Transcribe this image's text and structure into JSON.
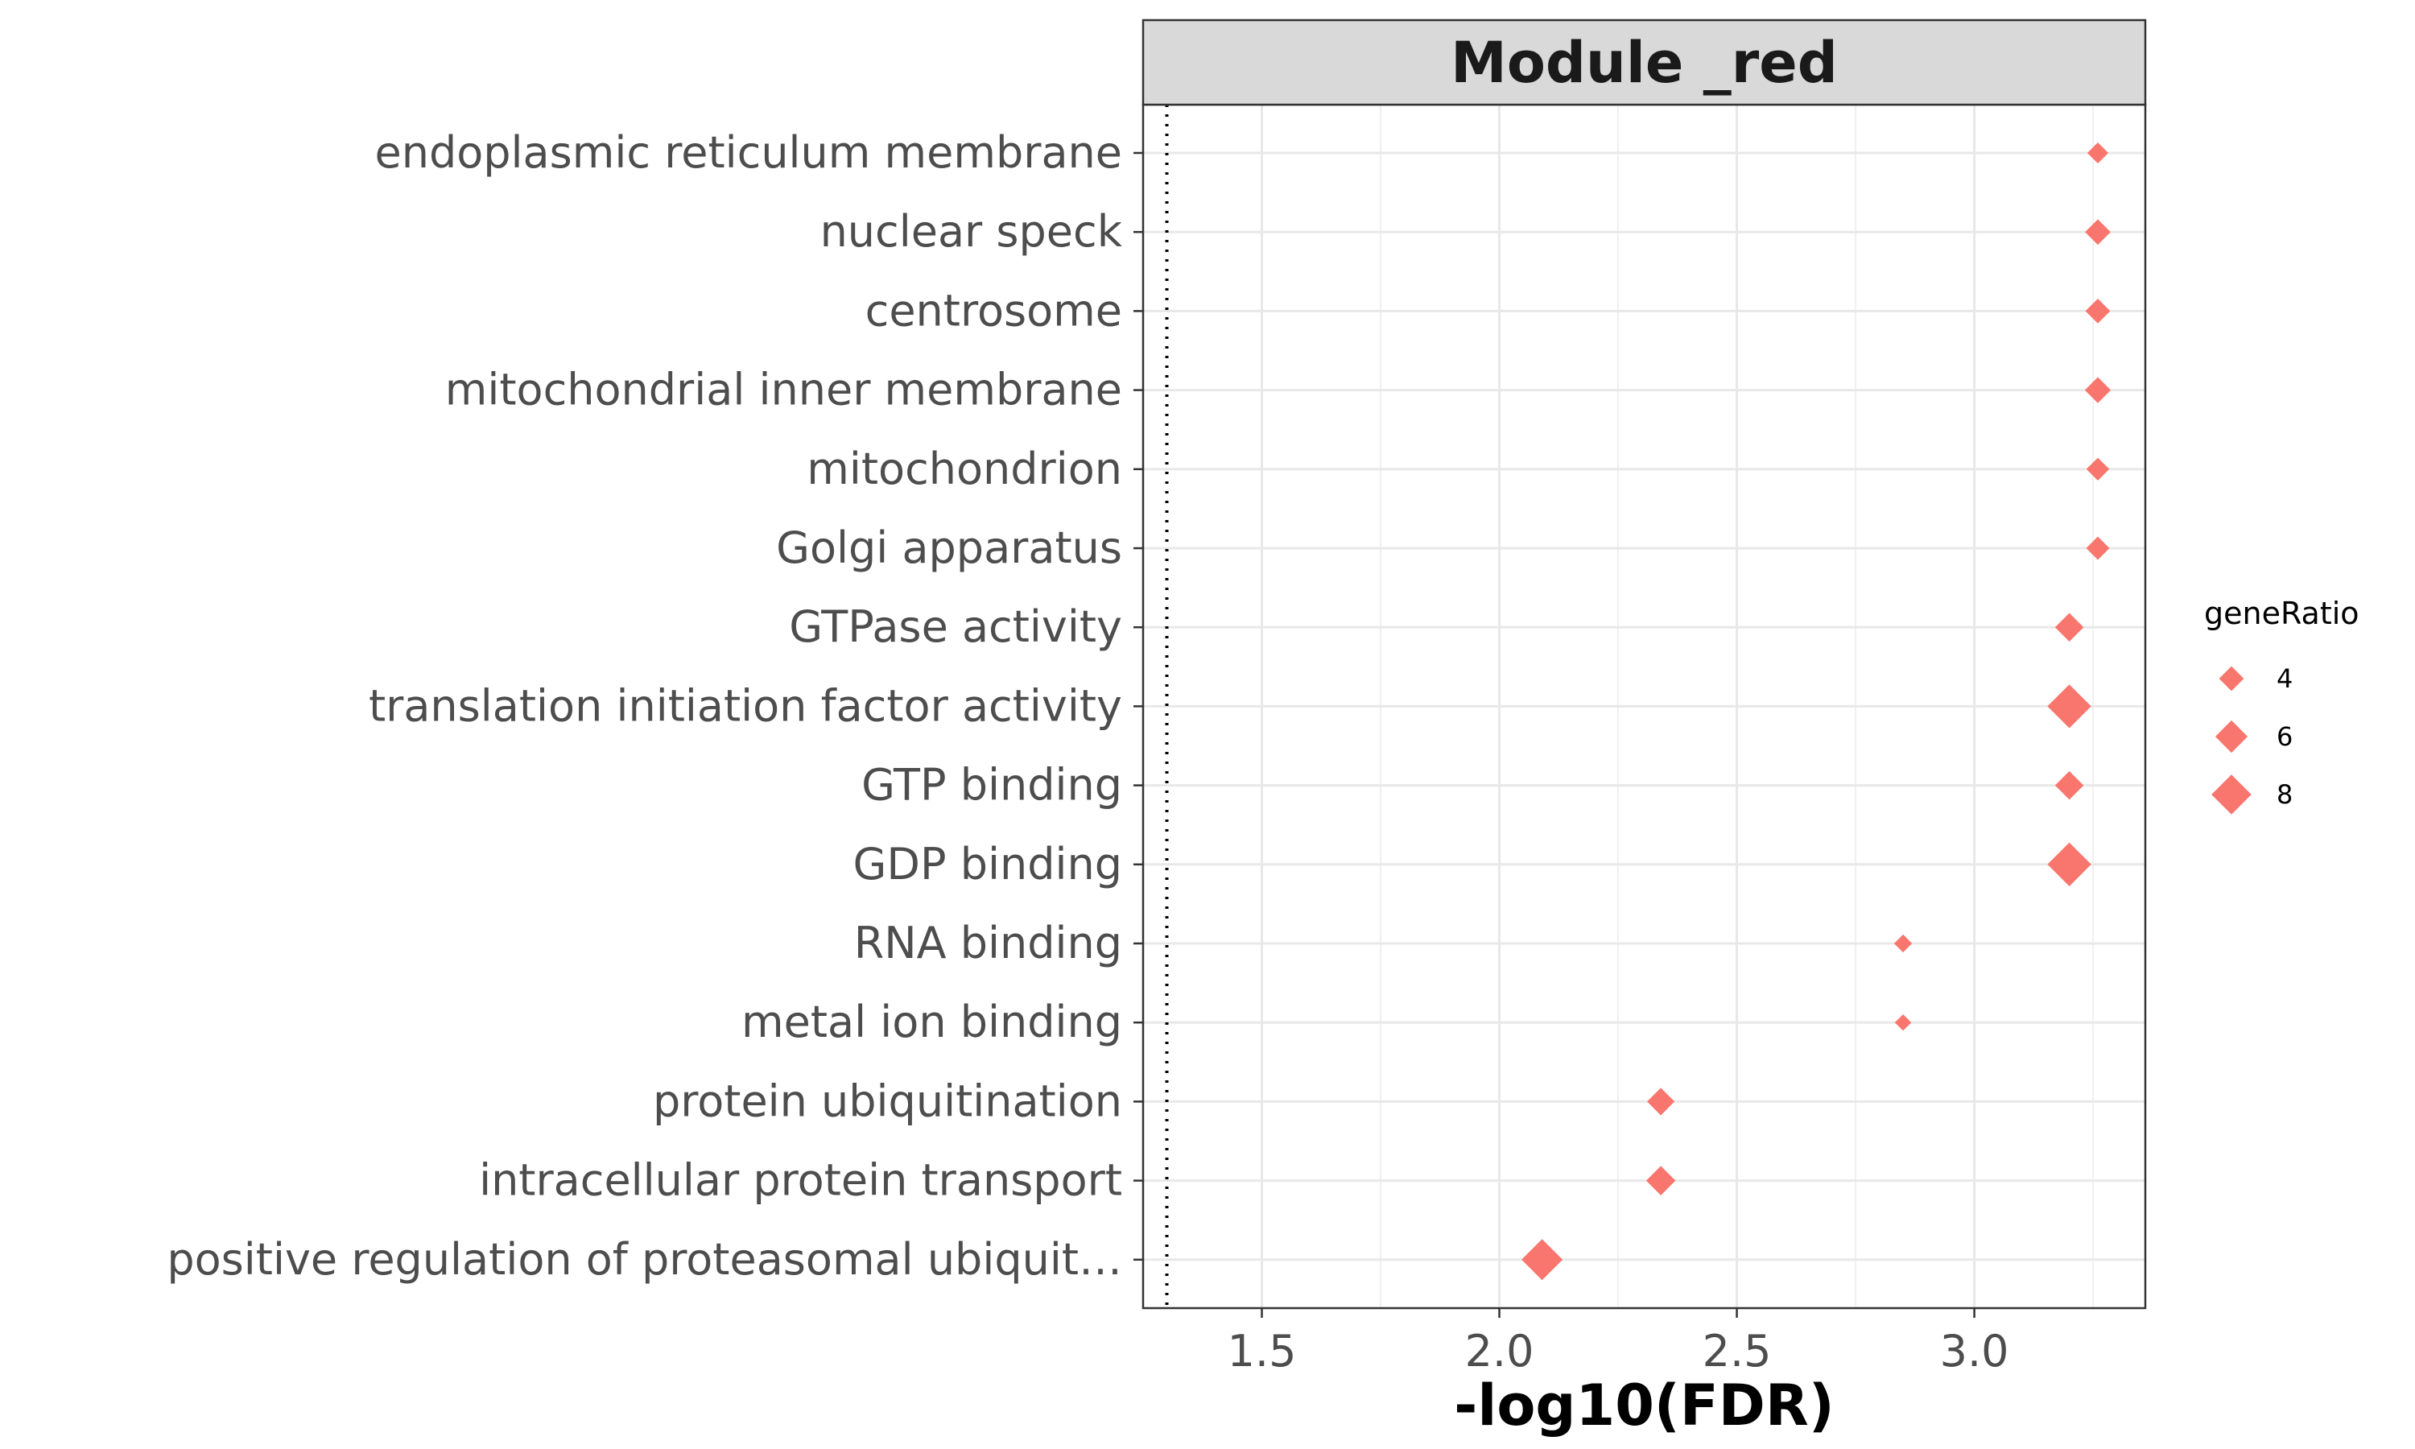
{
  "chart_data": {
    "type": "scatter",
    "title": "Module _red",
    "xlabel": "-log10(FDR)",
    "ylabel": "",
    "xlim": [
      1.25,
      3.36
    ],
    "x_ticks": [
      "1.5",
      "2.0",
      "2.5",
      "3.0"
    ],
    "reference_line": {
      "x": 1.3,
      "style": "dotted"
    },
    "marker": "diamond",
    "color": "#F8766D",
    "grid": true,
    "legend": {
      "title": "geneRatio",
      "placement": "right",
      "entries": [
        {
          "label": "4",
          "size_value": 4
        },
        {
          "label": "6",
          "size_value": 6
        },
        {
          "label": "8",
          "size_value": 8
        }
      ]
    },
    "categories": [
      "endoplasmic reticulum membrane",
      "nuclear speck",
      "centrosome",
      "mitochondrial inner membrane",
      "mitochondrion",
      "Golgi apparatus",
      "GTPase activity",
      "translation initiation factor activity",
      "GTP binding",
      "GDP binding",
      "RNA binding",
      "metal ion binding",
      "protein ubiquitination",
      "intracellular protein transport",
      "positive regulation of proteasomal ubiquit…"
    ],
    "x": [
      3.26,
      3.26,
      3.26,
      3.26,
      3.26,
      3.26,
      3.2,
      3.2,
      3.2,
      3.2,
      2.85,
      2.85,
      2.34,
      2.34,
      2.09
    ],
    "gene_ratio": [
      3.0,
      4.2,
      4.0,
      4.3,
      3.5,
      3.6,
      5.0,
      9.0,
      5.0,
      9.0,
      2.2,
      1.8,
      4.7,
      5.2,
      8.3
    ]
  }
}
